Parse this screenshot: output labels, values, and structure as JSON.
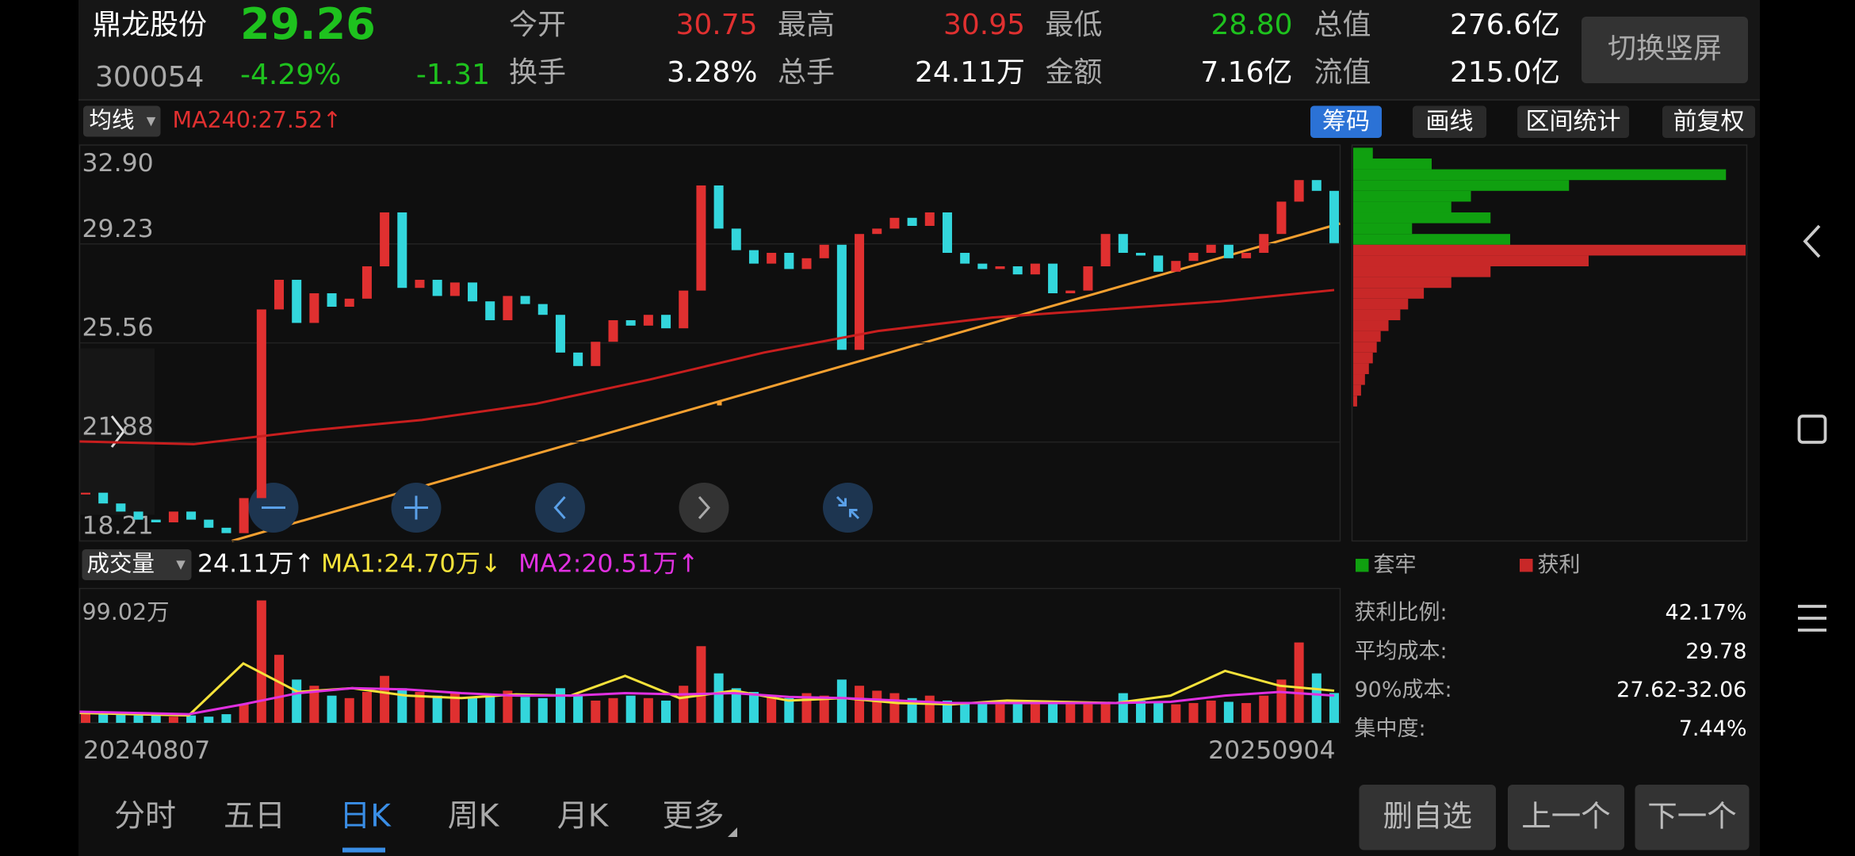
{
  "header": {
    "name": "鼎龙股份",
    "price": "29.26",
    "code": "300054",
    "change_pct": "-4.29%",
    "change": "-1.31",
    "fields": [
      {
        "label": "今开",
        "value": "30.75"
      },
      {
        "label": "最高",
        "value": "30.95"
      },
      {
        "label": "最低",
        "value": "28.80"
      },
      {
        "label": "总值",
        "value": "276.6亿"
      },
      {
        "label": "换手",
        "value": "3.28%"
      },
      {
        "label": "总手",
        "value": "24.11万"
      },
      {
        "label": "金额",
        "value": "7.16亿"
      },
      {
        "label": "流值",
        "value": "215.0亿"
      }
    ],
    "toggle_button": "切换竖屏"
  },
  "toolbar": {
    "indicator": "均线",
    "ma240": "MA240:27.52↑",
    "buttons": [
      "筹码",
      "画线",
      "区间统计",
      "前复权"
    ]
  },
  "price_chart": {
    "type": "candlestick",
    "ylim": [
      18.21,
      32.9
    ],
    "yticks": [
      {
        "value": 32.9,
        "label": "32.90"
      },
      29.23,
      25.56,
      21.88,
      18.21
    ],
    "closes": [
      20.0,
      19.6,
      19.3,
      19.0,
      18.9,
      19.3,
      19.0,
      18.7,
      18.5,
      19.8,
      26.8,
      27.9,
      26.3,
      27.4,
      26.9,
      27.2,
      28.4,
      30.4,
      27.6,
      27.9,
      27.3,
      27.8,
      27.1,
      26.4,
      27.3,
      27.0,
      26.6,
      25.2,
      24.7,
      25.6,
      26.4,
      26.2,
      26.6,
      26.1,
      27.5,
      31.4,
      29.8,
      29.0,
      28.5,
      28.9,
      28.3,
      28.7,
      29.2,
      25.3,
      29.6,
      29.8,
      30.2,
      29.9,
      30.4,
      28.9,
      28.5,
      28.3,
      28.4,
      28.1,
      28.5,
      27.4,
      27.5,
      28.4,
      29.6,
      28.9,
      28.8,
      28.2,
      28.6,
      28.9,
      29.2,
      28.7,
      28.9,
      29.6,
      30.8,
      31.6,
      31.2,
      29.26
    ],
    "ma240": [
      21.9,
      21.8,
      22.3,
      22.7,
      23.3,
      24.2,
      25.2,
      26.0,
      26.5,
      26.8,
      27.1,
      27.52
    ],
    "x_labels": [
      "20240807",
      "20250904"
    ]
  },
  "volume_chart": {
    "indicator": "成交量",
    "current": "24.11万↑",
    "ma1": "MA1:24.70万↓",
    "ma2": "MA2:20.51万↑",
    "ylim": [
      0,
      99.02
    ],
    "top_label": "99.02万",
    "values": [
      8,
      7,
      7,
      6,
      6,
      5,
      6,
      5,
      7,
      15,
      99,
      55,
      35,
      30,
      22,
      20,
      25,
      38,
      28,
      25,
      22,
      24,
      20,
      22,
      26,
      21,
      20,
      28,
      22,
      18,
      20,
      22,
      20,
      18,
      30,
      62,
      40,
      28,
      25,
      22,
      20,
      24,
      22,
      35,
      30,
      26,
      24,
      20,
      22,
      18,
      16,
      17,
      15,
      16,
      18,
      17,
      16,
      15,
      17,
      24,
      18,
      16,
      15,
      16,
      18,
      17,
      16,
      22,
      35,
      65,
      40,
      24.11
    ],
    "ma1_values": [
      8,
      7,
      6,
      48,
      25,
      28,
      22,
      20,
      23,
      22,
      38,
      20,
      26,
      18,
      20,
      16,
      15,
      18,
      17,
      16,
      22,
      42,
      30,
      26
    ],
    "ma2_values": [
      9,
      8,
      7,
      15,
      24,
      28,
      27,
      24,
      22,
      22,
      24,
      23,
      24,
      21,
      20,
      18,
      16,
      16,
      16,
      16,
      17,
      22,
      25,
      22
    ]
  },
  "chips": {
    "legend": [
      "套牢",
      "获利"
    ],
    "levels": [
      32.6,
      32.2,
      31.8,
      31.4,
      31.0,
      30.6,
      30.2,
      29.8,
      29.4,
      29.0,
      28.6,
      28.2,
      27.8,
      27.4,
      27.0,
      26.6,
      26.2,
      25.8,
      25.4,
      25.0,
      24.6,
      24.2,
      23.8,
      23.4
    ],
    "amounts": [
      5,
      20,
      95,
      55,
      30,
      25,
      35,
      15,
      40,
      100,
      60,
      35,
      25,
      18,
      14,
      12,
      9,
      7,
      6,
      5,
      4,
      3,
      2,
      1
    ],
    "stats": [
      {
        "label": "获利比例:",
        "value": "42.17%"
      },
      {
        "label": "平均成本:",
        "value": "29.78"
      },
      {
        "label": "90%成本:",
        "value": "27.62-32.06"
      },
      {
        "label": "集中度:",
        "value": "7.44%"
      }
    ]
  },
  "tabs": [
    "分时",
    "五日",
    "日K",
    "周K",
    "月K",
    "更多"
  ],
  "actions": [
    "删自选",
    "上一个",
    "下一个"
  ]
}
